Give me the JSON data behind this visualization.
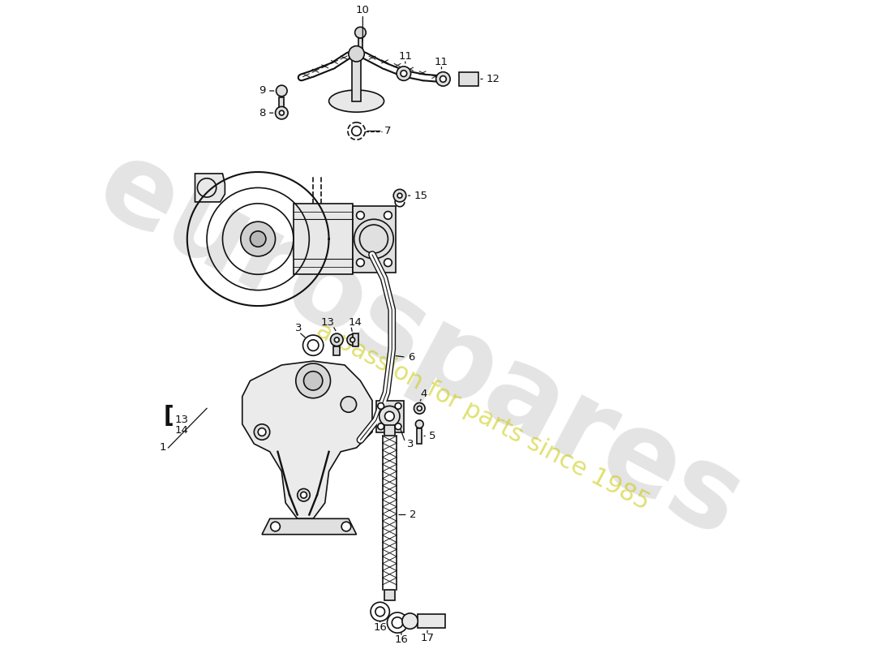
{
  "background_color": "#ffffff",
  "line_color": "#111111",
  "lw": 1.2,
  "label_size": 9.5,
  "leader_lw": 0.9
}
